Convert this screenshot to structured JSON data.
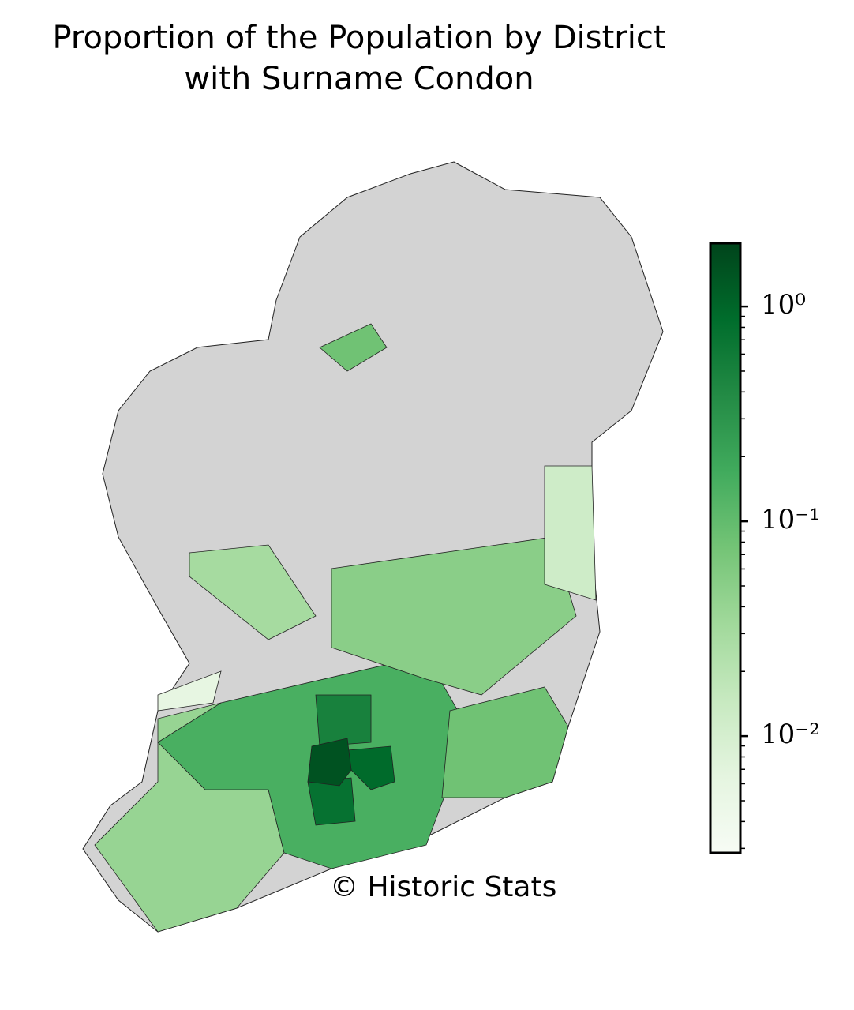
{
  "chart_data": {
    "type": "choropleth",
    "title": "Proportion of the Population by District\nwith Surname Condon",
    "annotation": "© Historic Stats",
    "cmap": "Greens",
    "missing_color": "#d3d3d3",
    "log": true,
    "values": [
      0.04,
      0.15,
      0.05,
      0.012,
      0.08,
      0.08,
      0.03,
      0.006,
      0.5,
      0.9,
      0.75,
      1.5
    ],
    "ylim": [
      0.00286,
      1.97
    ],
    "yticks": [
      {
        "value": 0.01,
        "label": "10⁻²"
      },
      {
        "value": 0.1,
        "label": "10⁻¹"
      },
      {
        "value": 1,
        "label": "10⁰"
      }
    ]
  }
}
